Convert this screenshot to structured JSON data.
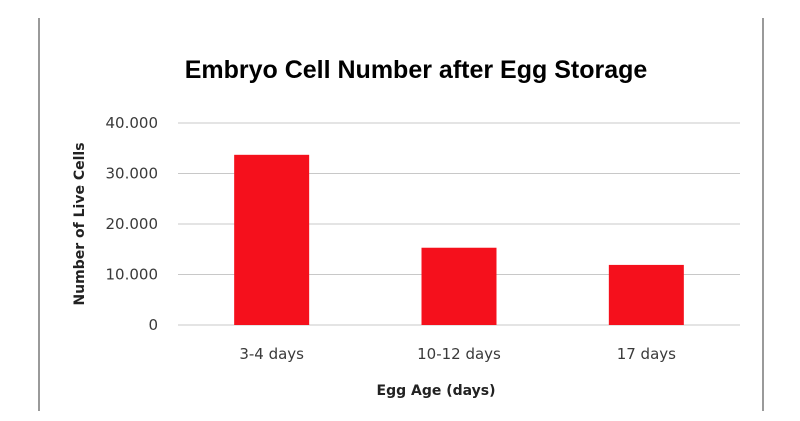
{
  "chart_data": {
    "type": "bar",
    "title": "Embryo Cell Number after Egg Storage",
    "xlabel": "Egg Age (days)",
    "ylabel": "Number of Live Cells",
    "categories": [
      "3-4 days",
      "10-12 days",
      "17 days"
    ],
    "values": [
      33.7,
      15.3,
      11.9
    ],
    "ylim": [
      0,
      40
    ],
    "yticks": [
      0,
      10,
      20,
      30,
      40
    ],
    "ytick_labels": [
      "0",
      "10.000",
      "20.000",
      "30.000",
      "40.000"
    ],
    "grid": true,
    "legend": "none",
    "bar_color": "#f5101c",
    "grid_color": "#c8c8c8"
  }
}
